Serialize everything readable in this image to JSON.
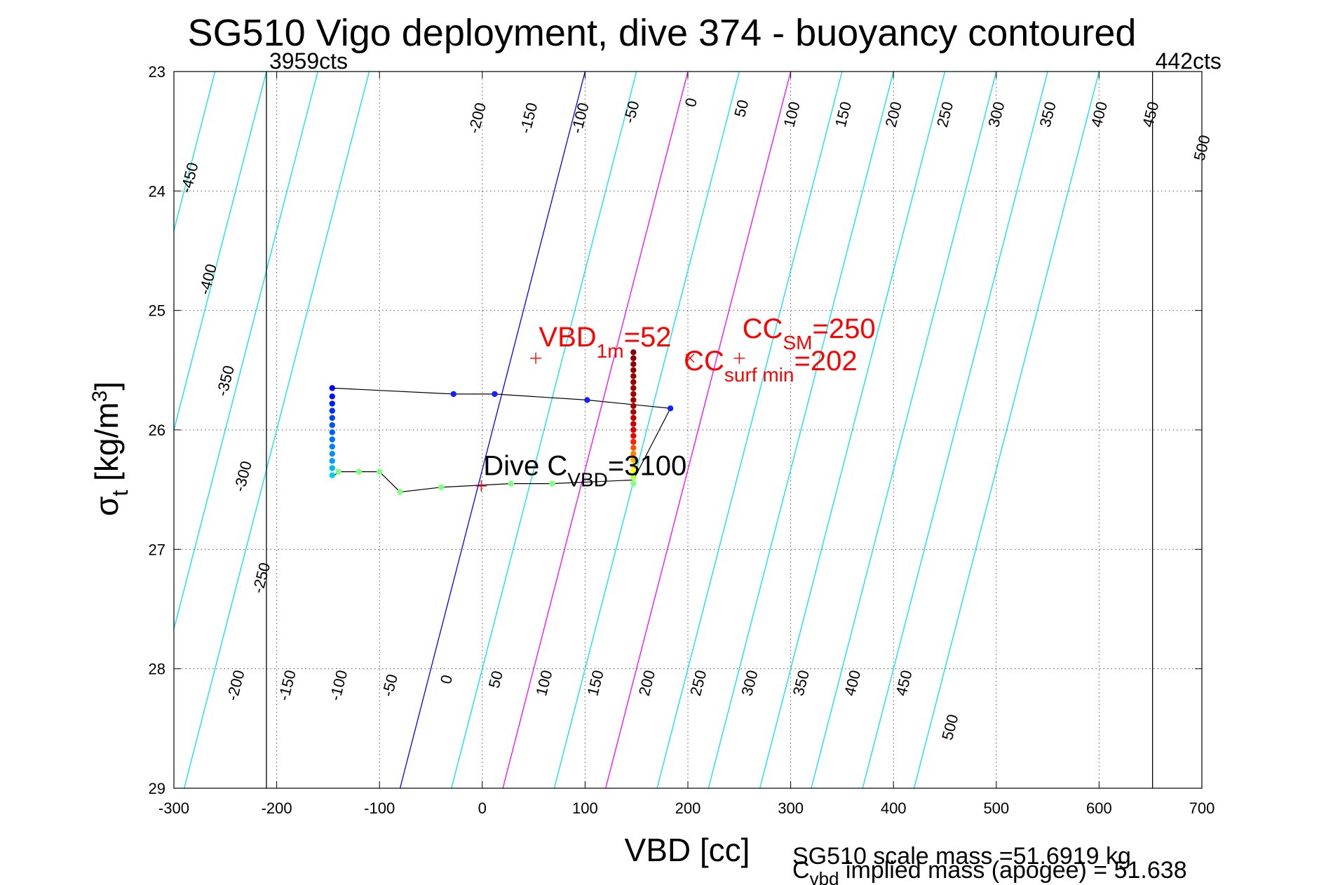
{
  "chart_data": {
    "type": "scatter",
    "title": "SG510 Vigo deployment, dive 374 - buoyancy contoured",
    "xlabel": "VBD [cc]",
    "ylabel": "σ_t [kg/m^3]",
    "xlim": [
      -300,
      700
    ],
    "ylim": [
      23,
      29
    ],
    "y_reversed": true,
    "grid": "dotted",
    "xticks": [
      -300,
      -200,
      -100,
      0,
      100,
      200,
      300,
      400,
      500,
      600,
      700
    ],
    "yticks": [
      23,
      24,
      25,
      26,
      27,
      28,
      29
    ],
    "contour_style": {
      "default_color": "#00e5ee",
      "zero_color": "#0000ff",
      "highlight_color": "#ff00ff",
      "highlight_levels": [
        100,
        200
      ]
    },
    "contours": [
      {
        "level": -450,
        "x_at_23": -510,
        "x_at_29": -690
      },
      {
        "level": -400,
        "x_at_23": -460,
        "x_at_29": -640
      },
      {
        "level": -350,
        "x_at_23": -410,
        "x_at_29": -590
      },
      {
        "level": -300,
        "x_at_23": -360,
        "x_at_29": -540
      },
      {
        "level": -250,
        "x_at_23": -310,
        "x_at_29": -490
      },
      {
        "level": -200,
        "x_at_23": -260,
        "x_at_29": -440
      },
      {
        "level": -150,
        "x_at_23": -210,
        "x_at_29": -390
      },
      {
        "level": -100,
        "x_at_23": -160,
        "x_at_29": -340
      },
      {
        "level": -50,
        "x_at_23": -110,
        "x_at_29": -290
      },
      {
        "level": 0,
        "x_at_23": 100,
        "x_at_29": -80
      },
      {
        "level": 50,
        "x_at_23": 150,
        "x_at_29": -30
      },
      {
        "level": 100,
        "x_at_23": 200,
        "x_at_29": 20
      },
      {
        "level": 150,
        "x_at_23": 250,
        "x_at_29": 70
      },
      {
        "level": 200,
        "x_at_23": 300,
        "x_at_29": 120
      },
      {
        "level": 250,
        "x_at_23": 350,
        "x_at_29": 170
      },
      {
        "level": 300,
        "x_at_23": 400,
        "x_at_29": 220
      },
      {
        "level": 350,
        "x_at_23": 450,
        "x_at_29": 270
      },
      {
        "level": 400,
        "x_at_23": 500,
        "x_at_29": 320
      },
      {
        "level": 450,
        "x_at_23": 550,
        "x_at_29": 370
      },
      {
        "level": 500,
        "x_at_23": 600,
        "x_at_29": 420
      }
    ],
    "contour_labels_top": [
      {
        "text": "-450",
        "x": -280,
        "y": 23.9
      },
      {
        "text": "-400",
        "x": -262,
        "y": 24.75
      },
      {
        "text": "-350",
        "x": -245,
        "y": 25.6
      },
      {
        "text": "-300",
        "x": -228,
        "y": 26.4
      },
      {
        "text": "-250",
        "x": -210,
        "y": 27.25
      },
      {
        "text": "-200",
        "x": 0,
        "y": 23.4
      },
      {
        "text": "-150",
        "x": 50,
        "y": 23.4
      },
      {
        "text": "-100",
        "x": 100,
        "y": 23.4
      },
      {
        "text": "-50",
        "x": 150,
        "y": 23.35
      },
      {
        "text": "0",
        "x": 208,
        "y": 23.27
      },
      {
        "text": "50",
        "x": 257,
        "y": 23.32
      },
      {
        "text": "100",
        "x": 306,
        "y": 23.37
      },
      {
        "text": "150",
        "x": 356,
        "y": 23.37
      },
      {
        "text": "200",
        "x": 405,
        "y": 23.37
      },
      {
        "text": "250",
        "x": 455,
        "y": 23.37
      },
      {
        "text": "300",
        "x": 505,
        "y": 23.37
      },
      {
        "text": "350",
        "x": 555,
        "y": 23.37
      },
      {
        "text": "400",
        "x": 605,
        "y": 23.37
      },
      {
        "text": "450",
        "x": 655,
        "y": 23.37
      },
      {
        "text": "500",
        "x": 705,
        "y": 23.65
      }
    ],
    "contour_labels_bottom": [
      {
        "text": "-200",
        "x": -235,
        "y": 28.15
      },
      {
        "text": "-150",
        "x": -185,
        "y": 28.15
      },
      {
        "text": "-100",
        "x": -135,
        "y": 28.15
      },
      {
        "text": "-50",
        "x": -85,
        "y": 28.15
      },
      {
        "text": "0",
        "x": -30,
        "y": 28.1
      },
      {
        "text": "50",
        "x": 18,
        "y": 28.1
      },
      {
        "text": "100",
        "x": 65,
        "y": 28.13
      },
      {
        "text": "150",
        "x": 115,
        "y": 28.13
      },
      {
        "text": "200",
        "x": 165,
        "y": 28.13
      },
      {
        "text": "250",
        "x": 215,
        "y": 28.13
      },
      {
        "text": "300",
        "x": 265,
        "y": 28.13
      },
      {
        "text": "350",
        "x": 315,
        "y": 28.13
      },
      {
        "text": "400",
        "x": 365,
        "y": 28.13
      },
      {
        "text": "450",
        "x": 415,
        "y": 28.13
      },
      {
        "text": "500",
        "x": 460,
        "y": 28.5
      }
    ],
    "vertical_lines": [
      {
        "x": -210,
        "label": "3959cts"
      },
      {
        "x": 652,
        "label": "442cts"
      }
    ],
    "series": [
      {
        "name": "",
        "color": "#000000",
        "line": true,
        "points": [
          [
            -146,
            25.65
          ],
          [
            -28,
            25.7
          ],
          [
            12,
            25.7
          ],
          [
            102,
            25.75
          ],
          [
            183,
            25.82
          ],
          [
            147,
            26.42
          ],
          [
            68,
            26.45
          ],
          [
            28,
            26.45
          ],
          [
            -40,
            26.48
          ],
          [
            -80,
            26.52
          ],
          [
            -100,
            26.35
          ],
          [
            -120,
            26.35
          ],
          [
            -140,
            26.35
          ],
          [
            -146,
            26.4
          ]
        ]
      }
    ],
    "marker_points": [
      {
        "x": -146,
        "y": 25.65,
        "color": "#0000ff"
      },
      {
        "x": -146,
        "y": 25.72,
        "color": "#0010ff"
      },
      {
        "x": -146,
        "y": 25.78,
        "color": "#0020ff"
      },
      {
        "x": -146,
        "y": 25.84,
        "color": "#0030ff"
      },
      {
        "x": -146,
        "y": 25.9,
        "color": "#0040ff"
      },
      {
        "x": -146,
        "y": 25.96,
        "color": "#0050ff"
      },
      {
        "x": -146,
        "y": 26.02,
        "color": "#0060ff"
      },
      {
        "x": -146,
        "y": 26.08,
        "color": "#0070ff"
      },
      {
        "x": -146,
        "y": 26.14,
        "color": "#0080ff"
      },
      {
        "x": -146,
        "y": 26.2,
        "color": "#0090ff"
      },
      {
        "x": -146,
        "y": 26.26,
        "color": "#00a0ff"
      },
      {
        "x": -146,
        "y": 26.32,
        "color": "#00b8ff"
      },
      {
        "x": -146,
        "y": 26.38,
        "color": "#00d0ff"
      },
      {
        "x": -28,
        "y": 25.7,
        "color": "#1020ff"
      },
      {
        "x": 12,
        "y": 25.7,
        "color": "#1020ff"
      },
      {
        "x": 102,
        "y": 25.75,
        "color": "#1020ff"
      },
      {
        "x": 183,
        "y": 25.82,
        "color": "#1020ff"
      },
      {
        "x": -140,
        "y": 26.35,
        "color": "#80ff80"
      },
      {
        "x": -120,
        "y": 26.35,
        "color": "#80ff80"
      },
      {
        "x": -100,
        "y": 26.35,
        "color": "#80ff80"
      },
      {
        "x": -80,
        "y": 26.52,
        "color": "#80ff80"
      },
      {
        "x": -40,
        "y": 26.48,
        "color": "#80ff80"
      },
      {
        "x": 28,
        "y": 26.45,
        "color": "#80ff80"
      },
      {
        "x": 68,
        "y": 26.45,
        "color": "#80ff80"
      },
      {
        "x": 147,
        "y": 26.45,
        "color": "#80ff80"
      },
      {
        "x": 147,
        "y": 26.4,
        "color": "#b0ff50"
      },
      {
        "x": 147,
        "y": 26.35,
        "color": "#ffff00"
      },
      {
        "x": 147,
        "y": 26.3,
        "color": "#ffe000"
      },
      {
        "x": 147,
        "y": 26.25,
        "color": "#ffb000"
      },
      {
        "x": 147,
        "y": 26.2,
        "color": "#ff8000"
      },
      {
        "x": 147,
        "y": 26.15,
        "color": "#ff5000"
      },
      {
        "x": 147,
        "y": 26.1,
        "color": "#ff2000"
      },
      {
        "x": 147,
        "y": 26.05,
        "color": "#f00000"
      },
      {
        "x": 147,
        "y": 26.0,
        "color": "#e00000"
      },
      {
        "x": 147,
        "y": 25.95,
        "color": "#d00000"
      },
      {
        "x": 147,
        "y": 25.9,
        "color": "#c00000"
      },
      {
        "x": 147,
        "y": 25.85,
        "color": "#b00000"
      },
      {
        "x": 147,
        "y": 25.8,
        "color": "#a00000"
      },
      {
        "x": 147,
        "y": 25.75,
        "color": "#a00000"
      },
      {
        "x": 147,
        "y": 25.7,
        "color": "#a00000"
      },
      {
        "x": 147,
        "y": 25.65,
        "color": "#a00000"
      },
      {
        "x": 147,
        "y": 25.6,
        "color": "#980000"
      },
      {
        "x": 147,
        "y": 25.55,
        "color": "#980000"
      },
      {
        "x": 147,
        "y": 25.5,
        "color": "#900000"
      },
      {
        "x": 147,
        "y": 25.45,
        "color": "#900000"
      },
      {
        "x": 147,
        "y": 25.4,
        "color": "#880000"
      },
      {
        "x": 147,
        "y": 25.35,
        "color": "#880000"
      }
    ],
    "annotations": [
      {
        "name": "vbd-1m",
        "marker": "+",
        "x": 52,
        "y": 25.4,
        "color": "#ff0000",
        "base": "VBD",
        "sub": "1m",
        "suffix": "=52",
        "label_x": 55,
        "label_y": 25.3
      },
      {
        "name": "cc-sm",
        "marker": "+",
        "x": 250,
        "y": 25.4,
        "color": "#ff0000",
        "base": "CC",
        "sub": "SM",
        "suffix": "=250",
        "label_x": 253,
        "label_y": 25.23
      },
      {
        "name": "cc-surf-min",
        "marker": "x",
        "x": 202,
        "y": 25.4,
        "color": "#ff0000",
        "base": "CC",
        "sub": "surf min",
        "suffix": "=202",
        "label_x": 196,
        "label_y": 25.5
      },
      {
        "name": "dive-cvbd",
        "marker": "+",
        "x": -1,
        "y": 26.47,
        "color": "#ff0000",
        "base": "Dive C",
        "sub": "VBD",
        "suffix": "=3100",
        "label_x": 1,
        "label_y": 26.38,
        "text_color": "#000000"
      }
    ],
    "footer": {
      "line1": "SG510 scale mass =51.6919 kg",
      "line2_base": "C",
      "line2_sub": "vbd",
      "line2_suffix": " implied mass (apogee) = 51.638"
    }
  }
}
